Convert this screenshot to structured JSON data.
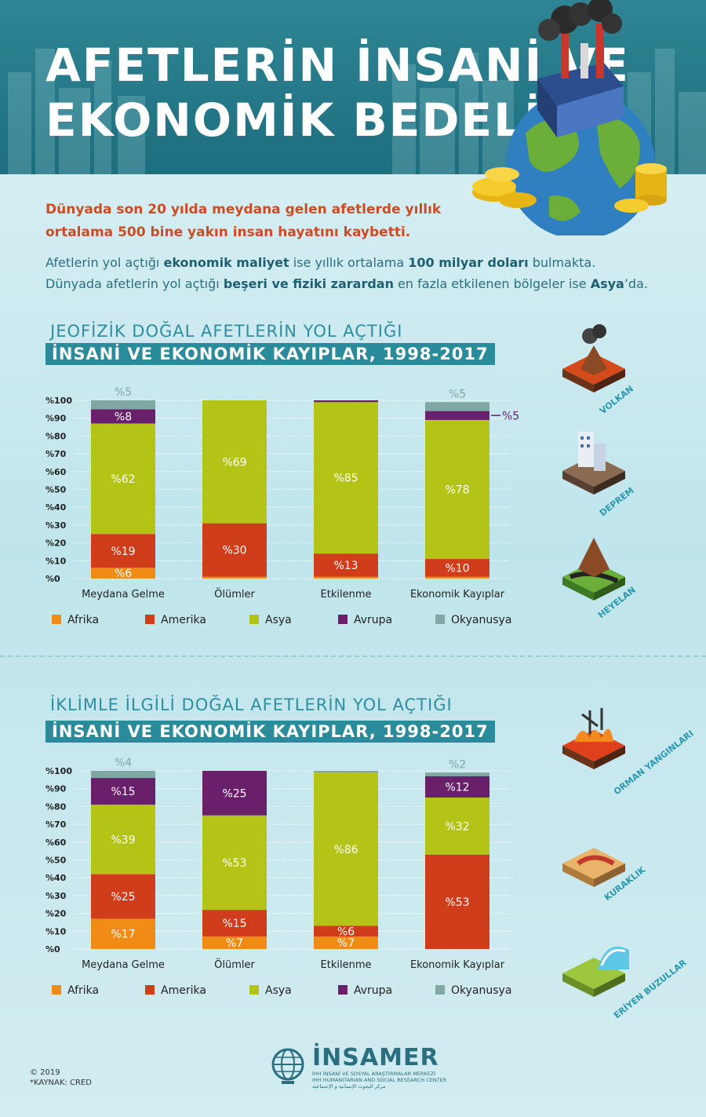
{
  "title_lines": [
    "AFETLERİN İNSANİ VE",
    "EKONOMİK BEDELİ!"
  ],
  "lead_text": "Dünyada son 20 yılda meydana gelen afetlerde yıllık ortalama 500 bine yakın insan hayatını kaybetti.",
  "sub_line1": [
    "Afetlerin yol açtığı ",
    "ekonomik maliyet",
    " ise yıllık ortalama ",
    "100 milyar doları",
    " bulmakta."
  ],
  "sub_line2": [
    "Dünyada afetlerin yol açtığı ",
    "beşeri ve fiziki zarardan",
    " en fazla etkilenen bölgeler ise ",
    "Asya",
    "’da."
  ],
  "section1": {
    "title_top": "JEOFİZİK DOĞAL AFETLERİN YOL AÇTIĞI",
    "title_bottom": "İNSANİ VE EKONOMİK KAYIPLAR, 1998-2017"
  },
  "section2": {
    "title_top": "İKLİMLE İLGİLİ DOĞAL AFETLERİN YOL AÇTIĞI",
    "title_bottom": "İNSANİ VE EKONOMİK KAYIPLAR, 1998-2017"
  },
  "icons_top": [
    "VOLKAN",
    "DEPREM",
    "HEYELAN"
  ],
  "icons_bottom": [
    "ORMAN YANGINLARI",
    "KURAKLIK",
    "ERİYEN BUZULLAR"
  ],
  "colors": {
    "Afrika": "#f08c16",
    "Amerika": "#cf3d1a",
    "Asya": "#b4c417",
    "Avrupa": "#6a1f6b",
    "Okyanusya": "#7fa8a3"
  },
  "chart_data": [
    {
      "type": "bar",
      "stacked": true,
      "categories": [
        "Meydana Gelme",
        "Ölümler",
        "Etkilenme",
        "Ekonomik Kayıplar"
      ],
      "y_ticks": [
        "%0",
        "%10",
        "%20",
        "%30",
        "%40",
        "%50",
        "%60",
        "%70",
        "%80",
        "%90",
        "%100"
      ],
      "ylim": [
        0,
        100
      ],
      "series": [
        {
          "name": "Afrika",
          "values": [
            6,
            1,
            1,
            1
          ],
          "labels": [
            "%6",
            "",
            "",
            ""
          ]
        },
        {
          "name": "Amerika",
          "values": [
            19,
            30,
            13,
            10
          ],
          "labels": [
            "%19",
            "%30",
            "%13",
            "%10"
          ]
        },
        {
          "name": "Asya",
          "values": [
            62,
            69,
            85,
            78
          ],
          "labels": [
            "%62",
            "%69",
            "%85",
            "%78"
          ]
        },
        {
          "name": "Avrupa",
          "values": [
            8,
            0,
            1,
            5
          ],
          "labels": [
            "%8",
            "",
            "",
            "%5"
          ]
        },
        {
          "name": "Okyanusya",
          "values": [
            5,
            0,
            0,
            5
          ],
          "labels": [
            "%5",
            "",
            "",
            "%5"
          ]
        }
      ],
      "legend": [
        "Afrika",
        "Amerika",
        "Asya",
        "Avrupa",
        "Okyanusya"
      ]
    },
    {
      "type": "bar",
      "stacked": true,
      "categories": [
        "Meydana Gelme",
        "Ölümler",
        "Etkilenme",
        "Ekonomik Kayıplar"
      ],
      "y_ticks": [
        "%0",
        "%10",
        "%20",
        "%30",
        "%40",
        "%50",
        "%60",
        "%70",
        "%80",
        "%90",
        "%100"
      ],
      "ylim": [
        0,
        100
      ],
      "series": [
        {
          "name": "Afrika",
          "values": [
            17,
            7,
            7,
            0
          ],
          "labels": [
            "%17",
            "%7",
            "%7",
            ""
          ]
        },
        {
          "name": "Amerika",
          "values": [
            25,
            15,
            6,
            53
          ],
          "labels": [
            "%25",
            "%15",
            "%6",
            "%53"
          ]
        },
        {
          "name": "Asya",
          "values": [
            39,
            53,
            86,
            32
          ],
          "labels": [
            "%39",
            "%53",
            "%86",
            "%32"
          ]
        },
        {
          "name": "Avrupa",
          "values": [
            15,
            25,
            0,
            12
          ],
          "labels": [
            "%15",
            "%25",
            "",
            "%12"
          ]
        },
        {
          "name": "Okyanusya",
          "values": [
            4,
            0,
            1,
            2
          ],
          "labels": [
            "%4",
            "",
            "",
            "%2"
          ]
        }
      ],
      "legend": [
        "Afrika",
        "Amerika",
        "Asya",
        "Avrupa",
        "Okyanusya"
      ]
    }
  ],
  "footer": {
    "copyright": "© 2019",
    "source": "*KAYNAK: CRED"
  },
  "logo": {
    "name": "İNSAMER",
    "lines": [
      "İHH İNSANİ VE SOSYAL ARAŞTIRMALAR MERKEZİ",
      "IHH HUMANITARIAN AND SOCIAL RESEARCH CENTER",
      "مركز البحوث الإنسانية و الإجتماعية"
    ]
  }
}
